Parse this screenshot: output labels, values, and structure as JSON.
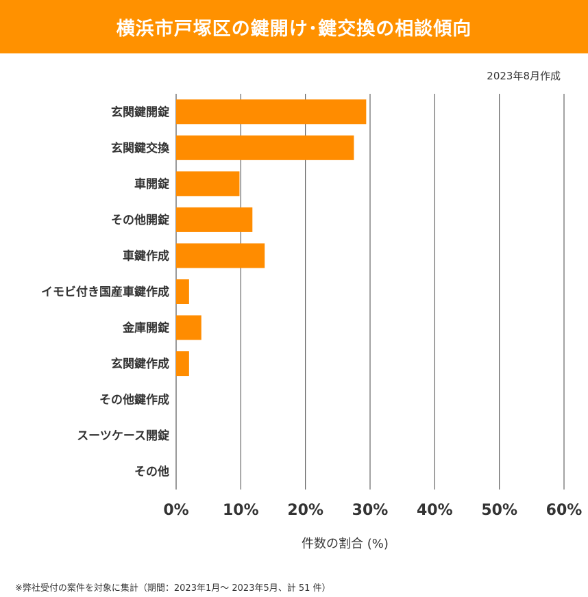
{
  "header": {
    "title": "横浜市戸塚区の鍵開け･鍵交換の相談傾向"
  },
  "date_note": "2023年8月作成",
  "footnote": "※弊社受付の案件を対象に集計（期間：2023年1月～ 2023年5月、計 51 件）",
  "colors": {
    "accent": "#ff9100",
    "bar": "#ff8c00"
  },
  "chart_data": {
    "type": "bar",
    "orientation": "horizontal",
    "categories": [
      "玄関鍵開錠",
      "玄関鍵交換",
      "車開錠",
      "その他開錠",
      "車鍵作成",
      "イモビ付き国産車鍵作成",
      "金庫開錠",
      "玄関鍵作成",
      "その他鍵作成",
      "スーツケース開錠",
      "その他"
    ],
    "values": [
      29.4,
      27.5,
      9.8,
      11.8,
      13.7,
      2.0,
      3.9,
      2.0,
      0,
      0,
      0
    ],
    "xlabel": "件数の割合 (%)",
    "xlim": [
      0,
      60
    ],
    "ticks": [
      "0%",
      "10%",
      "20%",
      "30%",
      "40%",
      "50%",
      "60%"
    ],
    "grid": true
  }
}
